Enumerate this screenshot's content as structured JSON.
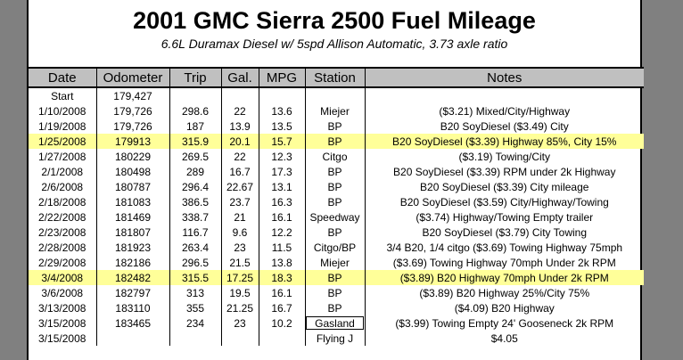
{
  "title": "2001 GMC Sierra 2500 Fuel Mileage",
  "subtitle": "6.6L Duramax Diesel w/ 5spd Allison Automatic, 3.73 axle ratio",
  "columns": [
    "Date",
    "Odometer",
    "Trip",
    "Gal.",
    "MPG",
    "Station",
    "Notes"
  ],
  "rows": [
    {
      "date": "Start",
      "odometer": "179,427",
      "trip": "",
      "gal": "",
      "mpg": "",
      "station": "",
      "notes": ""
    },
    {
      "date": "1/10/2008",
      "odometer": "179,726",
      "trip": "298.6",
      "gal": "22",
      "mpg": "13.6",
      "station": "Miejer",
      "notes": "($3.21) Mixed/City/Highway"
    },
    {
      "date": "1/19/2008",
      "odometer": "179,726",
      "trip": "187",
      "gal": "13.9",
      "mpg": "13.5",
      "station": "BP",
      "notes": "B20 SoyDiesel ($3.49) City"
    },
    {
      "date": "1/25/2008",
      "odometer": "179913",
      "trip": "315.9",
      "gal": "20.1",
      "mpg": "15.7",
      "station": "BP",
      "notes": "B20 SoyDiesel ($3.39) Highway 85%, City 15%",
      "highlight": true
    },
    {
      "date": "1/27/2008",
      "odometer": "180229",
      "trip": "269.5",
      "gal": "22",
      "mpg": "12.3",
      "station": "Citgo",
      "notes": "($3.19) Towing/City"
    },
    {
      "date": "2/1/2008",
      "odometer": "180498",
      "trip": "289",
      "gal": "16.7",
      "mpg": "17.3",
      "station": "BP",
      "notes": "B20 SoyDiesel ($3.39) RPM under 2k Highway"
    },
    {
      "date": "2/6/2008",
      "odometer": "180787",
      "trip": "296.4",
      "gal": "22.67",
      "mpg": "13.1",
      "station": "BP",
      "notes": "B20 SoyDiesel ($3.39) City mileage"
    },
    {
      "date": "2/18/2008",
      "odometer": "181083",
      "trip": "386.5",
      "gal": "23.7",
      "mpg": "16.3",
      "station": "BP",
      "notes": "B20 SoyDiesel ($3.59) City/Highway/Towing"
    },
    {
      "date": "2/22/2008",
      "odometer": "181469",
      "trip": "338.7",
      "gal": "21",
      "mpg": "16.1",
      "station": "Speedway",
      "notes": "($3.74) Highway/Towing Empty trailer"
    },
    {
      "date": "2/23/2008",
      "odometer": "181807",
      "trip": "116.7",
      "gal": "9.6",
      "mpg": "12.2",
      "station": "BP",
      "notes": "B20 SoyDiesel ($3.79) City Towing"
    },
    {
      "date": "2/28/2008",
      "odometer": "181923",
      "trip": "263.4",
      "gal": "23",
      "mpg": "11.5",
      "station": "Citgo/BP",
      "notes": "3/4 B20, 1/4 citgo ($3.69) Towing Highway 75mph"
    },
    {
      "date": "2/29/2008",
      "odometer": "182186",
      "trip": "296.5",
      "gal": "21.5",
      "mpg": "13.8",
      "station": "Miejer",
      "notes": "($3.69) Towing Highway 70mph Under 2k RPM"
    },
    {
      "date": "3/4/2008",
      "odometer": "182482",
      "trip": "315.5",
      "gal": "17.25",
      "mpg": "18.3",
      "station": "BP",
      "notes": "($3.89) B20 Highway 70mph Under 2k RPM",
      "highlight": true
    },
    {
      "date": "3/6/2008",
      "odometer": "182797",
      "trip": "313",
      "gal": "19.5",
      "mpg": "16.1",
      "station": "BP",
      "notes": "($3.89) B20 Highway 25%/City 75%"
    },
    {
      "date": "3/13/2008",
      "odometer": "183110",
      "trip": "355",
      "gal": "21.25",
      "mpg": "16.7",
      "station": "BP",
      "notes": "($4.09) B20 Highway"
    },
    {
      "date": "3/15/2008",
      "odometer": "183465",
      "trip": "234",
      "gal": "23",
      "mpg": "10.2",
      "station": "Gasland",
      "notes": "($3.99) Towing Empty 24' Gooseneck 2k RPM",
      "station_boxed": true
    },
    {
      "date": "3/15/2008",
      "odometer": "",
      "trip": "",
      "gal": "",
      "mpg": "",
      "station": "Flying J",
      "notes": "$4.05"
    }
  ],
  "colors": {
    "highlight": "#ffff99",
    "header": "#c0c0c0",
    "window_bg": "#808080"
  }
}
